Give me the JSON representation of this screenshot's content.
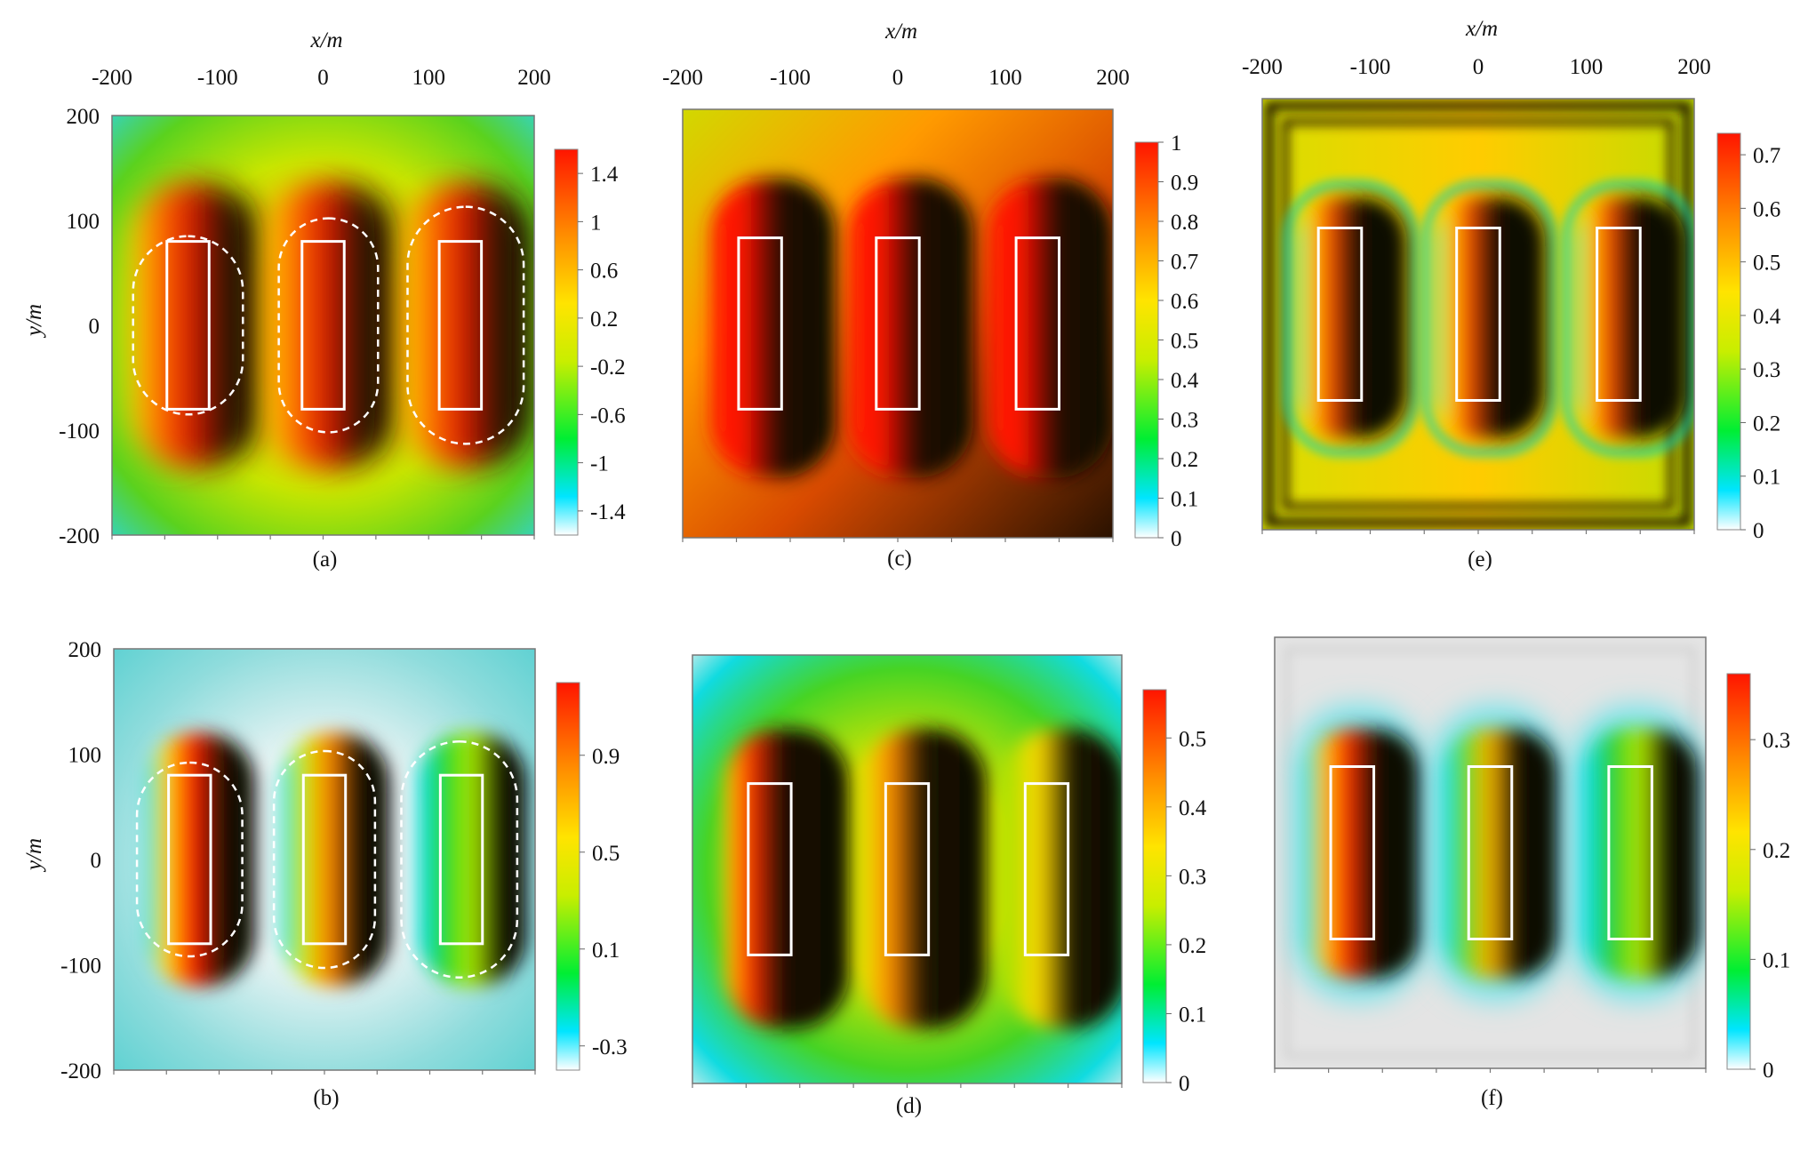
{
  "figure": {
    "x_axis_label": "x/m",
    "y_axis_label": "y/m",
    "x_ticks": [
      "-200",
      "-100",
      "0",
      "100",
      "200"
    ],
    "y_ticks": [
      "200",
      "100",
      "0",
      "-100",
      "-200"
    ]
  },
  "chart_data": [
    {
      "type": "heatmap",
      "panel": "(a)",
      "xlim": [
        -200,
        200
      ],
      "ylim": [
        -200,
        200
      ],
      "colorbar": {
        "ticks": [
          "1.4",
          "1",
          "0.6",
          "0.2",
          "-0.2",
          "-0.6",
          "-1",
          "-1.4"
        ],
        "range": [
          -1.6,
          1.6
        ]
      },
      "rectangles": [
        {
          "x": [
            -148,
            -108
          ],
          "y": [
            -80,
            80
          ]
        },
        {
          "x": [
            -20,
            20
          ],
          "y": [
            -80,
            80
          ]
        },
        {
          "x": [
            110,
            150
          ],
          "y": [
            -80,
            80
          ]
        }
      ],
      "dashed_outlines": [
        {
          "cx": -128,
          "cy": 0,
          "rx": 52,
          "ry": 85
        },
        {
          "cx": 5,
          "cy": 0,
          "rx": 47,
          "ry": 102
        },
        {
          "cx": 135,
          "cy": 0,
          "rx": 55,
          "ry": 113
        }
      ],
      "colors": [
        "#ffffff",
        "#00e0ff",
        "#00ee33",
        "#c6ec00",
        "#ffe600",
        "#ff9800",
        "#ff1500"
      ]
    },
    {
      "type": "heatmap",
      "panel": "(b)",
      "xlim": [
        -200,
        200
      ],
      "ylim": [
        -200,
        200
      ],
      "colorbar": {
        "ticks": [
          "0.9",
          "0.5",
          "0.1",
          "-0.3"
        ],
        "range": [
          -0.4,
          1.2
        ]
      },
      "rectangles": [
        {
          "x": [
            -148,
            -108
          ],
          "y": [
            -80,
            80
          ]
        },
        {
          "x": [
            -20,
            20
          ],
          "y": [
            -80,
            80
          ]
        },
        {
          "x": [
            110,
            150
          ],
          "y": [
            -80,
            80
          ]
        }
      ],
      "dashed_outlines": [
        {
          "cx": -128,
          "cy": 0,
          "rx": 50,
          "ry": 92
        },
        {
          "cx": 0,
          "cy": 0,
          "rx": 48,
          "ry": 103
        },
        {
          "cx": 128,
          "cy": 0,
          "rx": 55,
          "ry": 112
        }
      ]
    },
    {
      "type": "heatmap",
      "panel": "(c)",
      "xlim": [
        -200,
        200
      ],
      "ylim": [
        -200,
        200
      ],
      "colorbar": {
        "ticks": [
          "1",
          "0.9",
          "0.8",
          "0.7",
          "0.6",
          "0.5",
          "0.4",
          "0.3",
          "0.2",
          "0.1",
          "0"
        ],
        "range": [
          0,
          1
        ]
      },
      "rectangles": [
        {
          "x": [
            -148,
            -108
          ],
          "y": [
            -80,
            80
          ]
        },
        {
          "x": [
            -20,
            20
          ],
          "y": [
            -80,
            80
          ]
        },
        {
          "x": [
            110,
            150
          ],
          "y": [
            -80,
            80
          ]
        }
      ]
    },
    {
      "type": "heatmap",
      "panel": "(d)",
      "xlim": [
        -200,
        200
      ],
      "ylim": [
        -200,
        200
      ],
      "colorbar": {
        "ticks": [
          "0.5",
          "0.4",
          "0.3",
          "0.2",
          "0.1",
          "0"
        ],
        "range": [
          0,
          0.57
        ]
      },
      "rectangles": [
        {
          "x": [
            -148,
            -108
          ],
          "y": [
            -80,
            80
          ]
        },
        {
          "x": [
            -20,
            20
          ],
          "y": [
            -80,
            80
          ]
        },
        {
          "x": [
            110,
            150
          ],
          "y": [
            -80,
            80
          ]
        }
      ]
    },
    {
      "type": "heatmap",
      "panel": "(e)",
      "xlim": [
        -200,
        200
      ],
      "ylim": [
        -200,
        200
      ],
      "colorbar": {
        "ticks": [
          "0.7",
          "0.6",
          "0.5",
          "0.4",
          "0.3",
          "0.2",
          "0.1",
          "0"
        ],
        "range": [
          0,
          0.74
        ]
      },
      "rectangles": [
        {
          "x": [
            -148,
            -108
          ],
          "y": [
            -80,
            80
          ]
        },
        {
          "x": [
            -20,
            20
          ],
          "y": [
            -80,
            80
          ]
        },
        {
          "x": [
            110,
            150
          ],
          "y": [
            -80,
            80
          ]
        }
      ]
    },
    {
      "type": "heatmap",
      "panel": "(f)",
      "xlim": [
        -200,
        200
      ],
      "ylim": [
        -200,
        200
      ],
      "colorbar": {
        "ticks": [
          "0.3",
          "0.2",
          "0.1",
          "0"
        ],
        "range": [
          0,
          0.36
        ]
      },
      "rectangles": [
        {
          "x": [
            -148,
            -108
          ],
          "y": [
            -80,
            80
          ]
        },
        {
          "x": [
            -20,
            20
          ],
          "y": [
            -80,
            80
          ]
        },
        {
          "x": [
            110,
            150
          ],
          "y": [
            -80,
            80
          ]
        }
      ]
    }
  ]
}
